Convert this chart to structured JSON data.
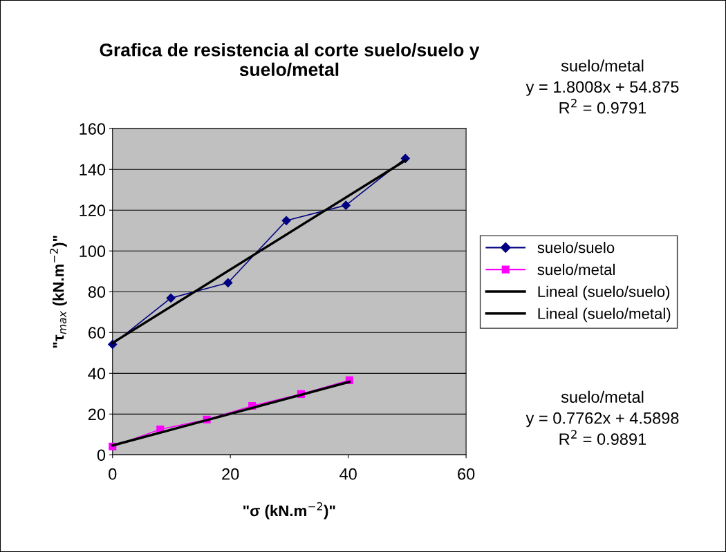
{
  "chart_data": {
    "type": "line",
    "title": "Grafica de resistencia al corte suelo/suelo y\nsuelo/metal",
    "xlabel": "\"σ (kN.m$^{−2}$)\"",
    "ylabel": "\"τ$_{max}$ (kN.m$^{−2}$)\"",
    "series": [
      {
        "name": "suelo/suelo",
        "color": "#000080",
        "marker": "diamond",
        "x": [
          0,
          9.9,
          19.6,
          29.5,
          39.6,
          49.7
        ],
        "values": [
          54.2,
          76.9,
          84.4,
          114.9,
          122.4,
          145.4
        ]
      },
      {
        "name": "suelo/metal",
        "color": "#ff00ff",
        "marker": "square",
        "x": [
          0,
          8.1,
          16,
          23.7,
          32,
          40.2
        ],
        "values": [
          4.1,
          12.5,
          17.3,
          24,
          29.8,
          36.6
        ]
      },
      {
        "name": "Lineal (suelo/suelo)",
        "color": "#000000",
        "marker": "none",
        "x": [
          0,
          49.7
        ],
        "values": [
          54.9,
          144.4
        ]
      },
      {
        "name": "Lineal (suelo/metal)",
        "color": "#000000",
        "marker": "none",
        "x": [
          0,
          40.2
        ],
        "values": [
          4.6,
          35.8
        ]
      }
    ],
    "annotations": [
      "suelo/metal\ny = 1.8008x + 54.875\nR$^{2}$ = 0.9791",
      "suelo/metal\ny = 0.7762x + 4.5898\nR$^{2}$ = 0.9891"
    ],
    "xlim": [
      0,
      60
    ],
    "xticks": [
      0,
      20,
      40,
      60
    ],
    "ylim": [
      0,
      160
    ],
    "yticks": [
      0,
      20,
      40,
      60,
      80,
      100,
      120,
      140,
      160
    ],
    "grid": "y",
    "legend": "right"
  }
}
